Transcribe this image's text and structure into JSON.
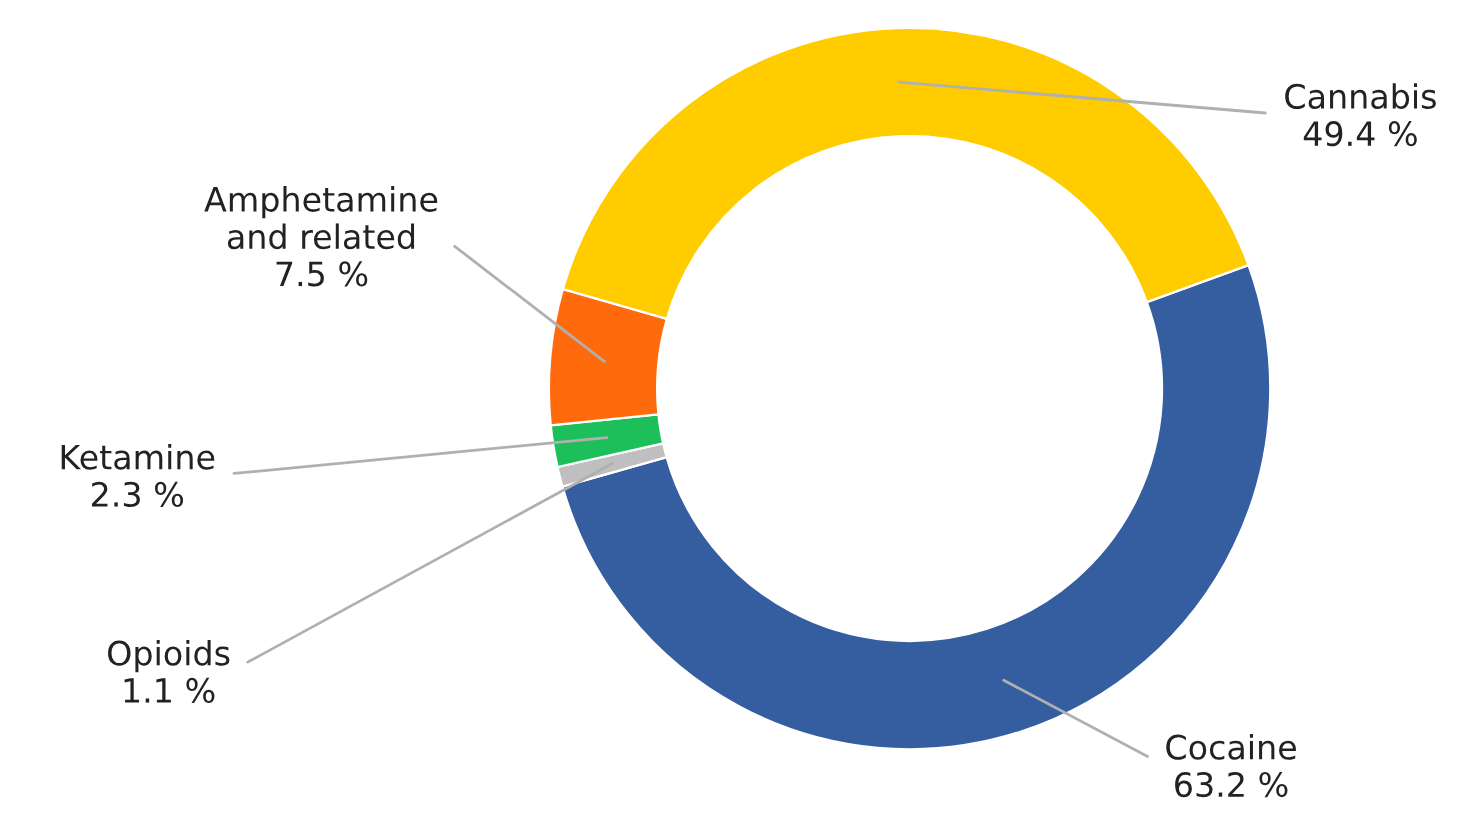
{
  "chart_data": {
    "type": "donut",
    "categories": [
      "Cocaine",
      "Opioids",
      "Ketamine",
      "Amphetamine and related",
      "Cannabis"
    ],
    "values": [
      63.2,
      1.1,
      2.3,
      7.5,
      49.4
    ],
    "colors": [
      "#355ea0",
      "#bfbfbf",
      "#1cbf5a",
      "#ff6a0d",
      "#ffcc00"
    ],
    "value_labels": [
      "63.2 %",
      "1.1 %",
      "2.3 %",
      "7.5 %",
      "49.4 %"
    ],
    "legend": false
  }
}
